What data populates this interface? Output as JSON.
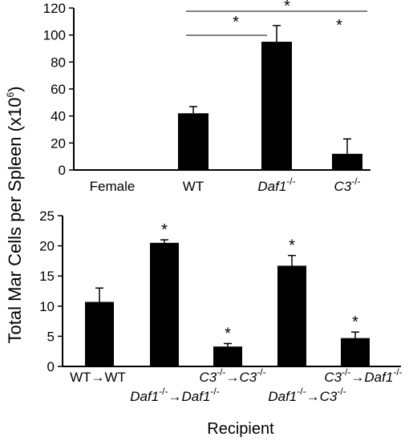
{
  "ylabel": "Total Mar Cells per Spleen (x10",
  "ylabel_exp": "6",
  "ylabel_close": ")",
  "chart_data": [
    {
      "type": "bar",
      "categories": [
        {
          "base": "Female",
          "sup": ""
        },
        {
          "base": "WT",
          "sup": ""
        },
        {
          "base": "Daf1",
          "sup": "-/-",
          "italic": true
        },
        {
          "base": "C3",
          "sup": "-/-",
          "italic": true
        }
      ],
      "values": [
        0.5,
        42,
        95,
        12
      ],
      "errors": [
        0,
        5,
        12,
        11
      ],
      "ylim": [
        0,
        120
      ],
      "yticks": [
        0,
        20,
        40,
        60,
        80,
        100,
        120
      ],
      "ytick_labels": [
        "0",
        "20",
        "40",
        "60",
        "80",
        "100",
        "120"
      ],
      "significance": [
        {
          "from": 1,
          "to": 3,
          "label": "*"
        },
        {
          "from": 1,
          "to": 2,
          "label": "*"
        },
        {
          "at": 3,
          "label": "*"
        }
      ]
    },
    {
      "type": "bar",
      "xlabel": "Recipient",
      "categories": [
        {
          "parts": [
            {
              "t": "WT→WT"
            }
          ],
          "row": 0
        },
        {
          "parts": [
            {
              "t": "Daf1",
              "i": true
            },
            {
              "t": "-/-",
              "s": true
            },
            {
              "t": "→"
            },
            {
              "t": "Daf1",
              "i": true
            },
            {
              "t": "-/-",
              "s": true
            }
          ],
          "row": 1
        },
        {
          "parts": [
            {
              "t": "C3",
              "i": true
            },
            {
              "t": "-/-",
              "s": true
            },
            {
              "t": "→"
            },
            {
              "t": "C3",
              "i": true
            },
            {
              "t": "-/-",
              "s": true
            }
          ],
          "row": 0
        },
        {
          "parts": [
            {
              "t": "Daf1",
              "i": true
            },
            {
              "t": "-/-",
              "s": true
            },
            {
              "t": "→"
            },
            {
              "t": "C3",
              "i": true
            },
            {
              "t": "-/-",
              "s": true
            }
          ],
          "row": 1
        },
        {
          "parts": [
            {
              "t": "C3",
              "i": true
            },
            {
              "t": "-/-",
              "s": true
            },
            {
              "t": "→"
            },
            {
              "t": "Daf1",
              "i": true
            },
            {
              "t": "-/-",
              "s": true
            }
          ],
          "row": 0
        }
      ],
      "values": [
        10.7,
        20.5,
        3.3,
        16.7,
        4.7
      ],
      "errors": [
        2.3,
        0.5,
        0.5,
        1.7,
        1.0
      ],
      "ylim": [
        0,
        25
      ],
      "yticks": [
        0,
        5,
        10,
        15,
        20,
        25
      ],
      "ytick_labels": [
        "0",
        "5",
        "10",
        "15",
        "20",
        "25"
      ],
      "significance_labels": [
        "",
        "*",
        "*",
        "*",
        "*"
      ]
    }
  ]
}
